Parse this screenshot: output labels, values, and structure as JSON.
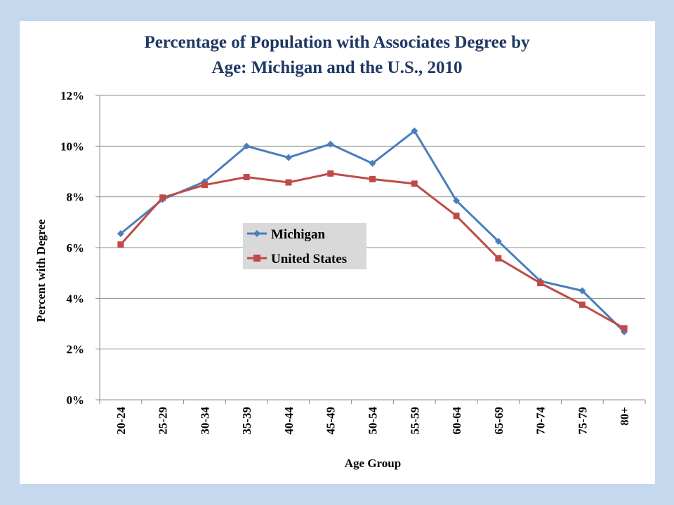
{
  "chart_data": {
    "type": "line",
    "title_lines": [
      "Percentage of Population with Associates Degree by",
      "Age: Michigan and the U.S.,  2010"
    ],
    "xlabel": "Age Group",
    "ylabel": "Percent with Degree",
    "categories": [
      "20-24",
      "25-29",
      "30-34",
      "35-39",
      "40-44",
      "45-49",
      "50-54",
      "55-59",
      "60-64",
      "65-69",
      "70-74",
      "75-79",
      "80+"
    ],
    "y_ticks": [
      "0%",
      "2%",
      "4%",
      "6%",
      "8%",
      "10%",
      "12%"
    ],
    "ylim": [
      0,
      12
    ],
    "grid": true,
    "legend_position": "center-left",
    "series": [
      {
        "name": "Michigan",
        "color": "#4a7ebb",
        "marker": "diamond",
        "values": [
          6.55,
          7.9,
          8.6,
          10.0,
          9.55,
          10.08,
          9.32,
          10.6,
          7.85,
          6.25,
          4.68,
          4.3,
          2.68
        ]
      },
      {
        "name": "United States",
        "color": "#be4b48",
        "marker": "square",
        "values": [
          6.12,
          7.97,
          8.47,
          8.78,
          8.57,
          8.92,
          8.7,
          8.52,
          7.25,
          5.58,
          4.6,
          3.75,
          2.82
        ]
      }
    ]
  }
}
